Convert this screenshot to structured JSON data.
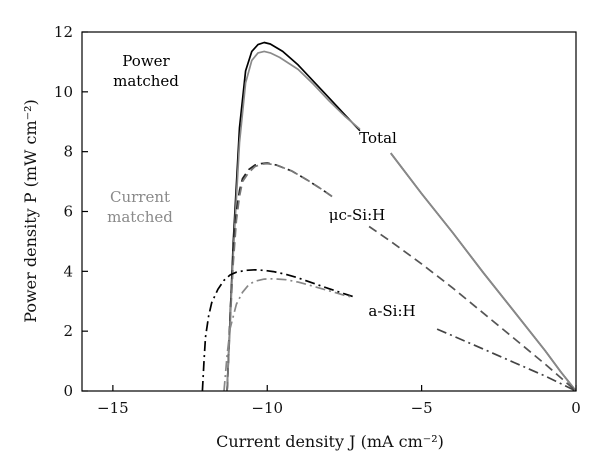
{
  "chart_data": {
    "type": "line",
    "title": "",
    "xlabel": "Current density J (mA cm⁻²)",
    "ylabel": "Power density P (mW cm⁻²)",
    "xlim": [
      -16,
      0
    ],
    "ylim": [
      0,
      12
    ],
    "xticks": [
      -15,
      -10,
      -5,
      0
    ],
    "yticks": [
      0,
      2,
      4,
      6,
      8,
      10,
      12
    ],
    "xtick_labels": [
      "−15",
      "−10",
      "−5",
      "0"
    ],
    "ytick_labels": [
      "0",
      "2",
      "4",
      "6",
      "8",
      "10",
      "12"
    ],
    "grid": false,
    "legend": "none",
    "series": [
      {
        "color": "#000000",
        "dash": "solid",
        "x": [
          -11.3,
          -11.1,
          -10.9,
          -10.7,
          -10.5,
          -10.3,
          -10.1,
          -9.9,
          -9.5,
          -9.0,
          -8.5,
          -8.0,
          -7.5,
          -7.0
        ],
        "y": [
          0,
          5.0,
          8.8,
          10.7,
          11.35,
          11.58,
          11.65,
          11.6,
          11.35,
          10.9,
          10.35,
          9.8,
          9.25,
          8.7
        ]
      },
      {
        "color": "#000000",
        "dash": "solid",
        "x": [
          -6.0,
          -5.0,
          -4.0,
          -3.0,
          -2.0,
          -1.0,
          -0.5,
          0
        ],
        "y": [
          7.95,
          6.6,
          5.3,
          3.95,
          2.65,
          1.35,
          0.65,
          0
        ]
      },
      {
        "color": "#8a8a8a",
        "dash": "solid",
        "x": [
          -11.3,
          -11.1,
          -10.9,
          -10.7,
          -10.5,
          -10.3,
          -10.1,
          -9.9,
          -9.6,
          -9.0,
          -8.5,
          -8.0,
          -7.5,
          -7.0
        ],
        "y": [
          0,
          4.6,
          8.3,
          10.3,
          11.05,
          11.3,
          11.35,
          11.3,
          11.15,
          10.75,
          10.25,
          9.7,
          9.2,
          8.75
        ]
      },
      {
        "color": "#8a8a8a",
        "dash": "solid",
        "x": [
          -6.0,
          -5.0,
          -4.0,
          -3.0,
          -2.0,
          -1.0,
          -0.5,
          0
        ],
        "y": [
          7.95,
          6.6,
          5.3,
          3.95,
          2.65,
          1.35,
          0.65,
          0
        ]
      },
      {
        "color": "#222222",
        "dash": "dashed",
        "x": [
          -11.3,
          -11.2,
          -11.1,
          -11.0,
          -10.9,
          -10.8,
          -10.6,
          -10.4,
          -10.2,
          -10.0,
          -9.7,
          -9.2,
          -8.7,
          -8.2,
          -7.9
        ],
        "y": [
          0,
          2.6,
          4.7,
          6.0,
          6.7,
          7.1,
          7.4,
          7.55,
          7.6,
          7.62,
          7.55,
          7.35,
          7.05,
          6.72,
          6.5
        ]
      },
      {
        "color": "#777777",
        "dash": "dashed",
        "x": [
          -11.3,
          -11.2,
          -11.1,
          -11.0,
          -10.9,
          -10.8,
          -10.6,
          -10.4,
          -10.2,
          -10.0,
          -9.7,
          -9.2,
          -8.7,
          -8.2,
          -7.9
        ],
        "y": [
          0,
          2.3,
          4.3,
          5.7,
          6.5,
          7.0,
          7.3,
          7.5,
          7.58,
          7.6,
          7.55,
          7.35,
          7.05,
          6.72,
          6.5
        ]
      },
      {
        "color": "#555555",
        "dash": "dashed",
        "x": [
          -6.7,
          -6.0,
          -5.0,
          -4.0,
          -3.0,
          -2.0,
          -1.0,
          0
        ],
        "y": [
          5.5,
          5.0,
          4.25,
          3.45,
          2.6,
          1.75,
          0.9,
          0
        ]
      },
      {
        "color": "#000000",
        "dash": "dashdot",
        "x": [
          -12.1,
          -12.05,
          -12.0,
          -11.9,
          -11.8,
          -11.6,
          -11.4,
          -11.2,
          -11.0,
          -10.7,
          -10.4,
          -10.1,
          -9.8,
          -9.4,
          -9.0,
          -8.5,
          -8.0,
          -7.5,
          -7.2
        ],
        "y": [
          0,
          1.0,
          1.8,
          2.5,
          2.95,
          3.4,
          3.7,
          3.88,
          3.97,
          4.03,
          4.05,
          4.03,
          3.99,
          3.9,
          3.78,
          3.6,
          3.42,
          3.25,
          3.15
        ]
      },
      {
        "color": "#888888",
        "dash": "dashdot",
        "x": [
          -11.4,
          -11.3,
          -11.2,
          -11.0,
          -10.8,
          -10.6,
          -10.4,
          -10.1,
          -9.8,
          -9.4,
          -9.0,
          -8.5,
          -8.0,
          -7.5,
          -7.2
        ],
        "y": [
          0,
          1.2,
          2.1,
          2.9,
          3.3,
          3.55,
          3.67,
          3.74,
          3.75,
          3.72,
          3.64,
          3.5,
          3.35,
          3.2,
          3.13
        ]
      },
      {
        "color": "#444444",
        "dash": "dashdot",
        "x": [
          -4.5,
          -4.0,
          -3.0,
          -2.0,
          -1.0,
          -0.5,
          0
        ],
        "y": [
          2.07,
          1.85,
          1.4,
          0.95,
          0.5,
          0.25,
          0
        ]
      }
    ],
    "annotations": [
      {
        "lines": [
          "Power",
          "matched"
        ],
        "color": "#000000"
      },
      {
        "lines": [
          "Current",
          "matched"
        ],
        "color": "#8a8a8a"
      },
      {
        "lines": [
          "Total"
        ],
        "color": "#000000"
      },
      {
        "lines": [
          "μc-Si:H"
        ],
        "color": "#000000"
      },
      {
        "lines": [
          "a-Si:H"
        ],
        "color": "#000000"
      }
    ]
  }
}
